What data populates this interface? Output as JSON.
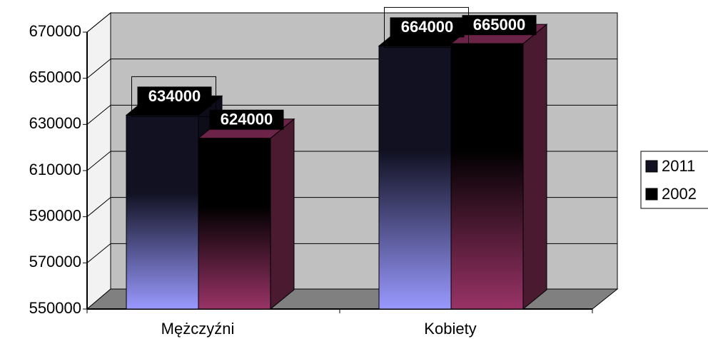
{
  "chart_data": {
    "type": "bar3d",
    "categories": [
      "Mężczyźni",
      "Kobiety"
    ],
    "series": [
      {
        "name": "2011",
        "color": "#9999ff",
        "values": [
          634000,
          664000
        ]
      },
      {
        "name": "2002",
        "color": "#993366",
        "values": [
          624000,
          665000
        ]
      }
    ],
    "ylim": [
      550000,
      670000
    ],
    "yticks": [
      550000,
      570000,
      590000,
      610000,
      630000,
      650000,
      670000
    ],
    "grid": true,
    "legend": "right"
  }
}
